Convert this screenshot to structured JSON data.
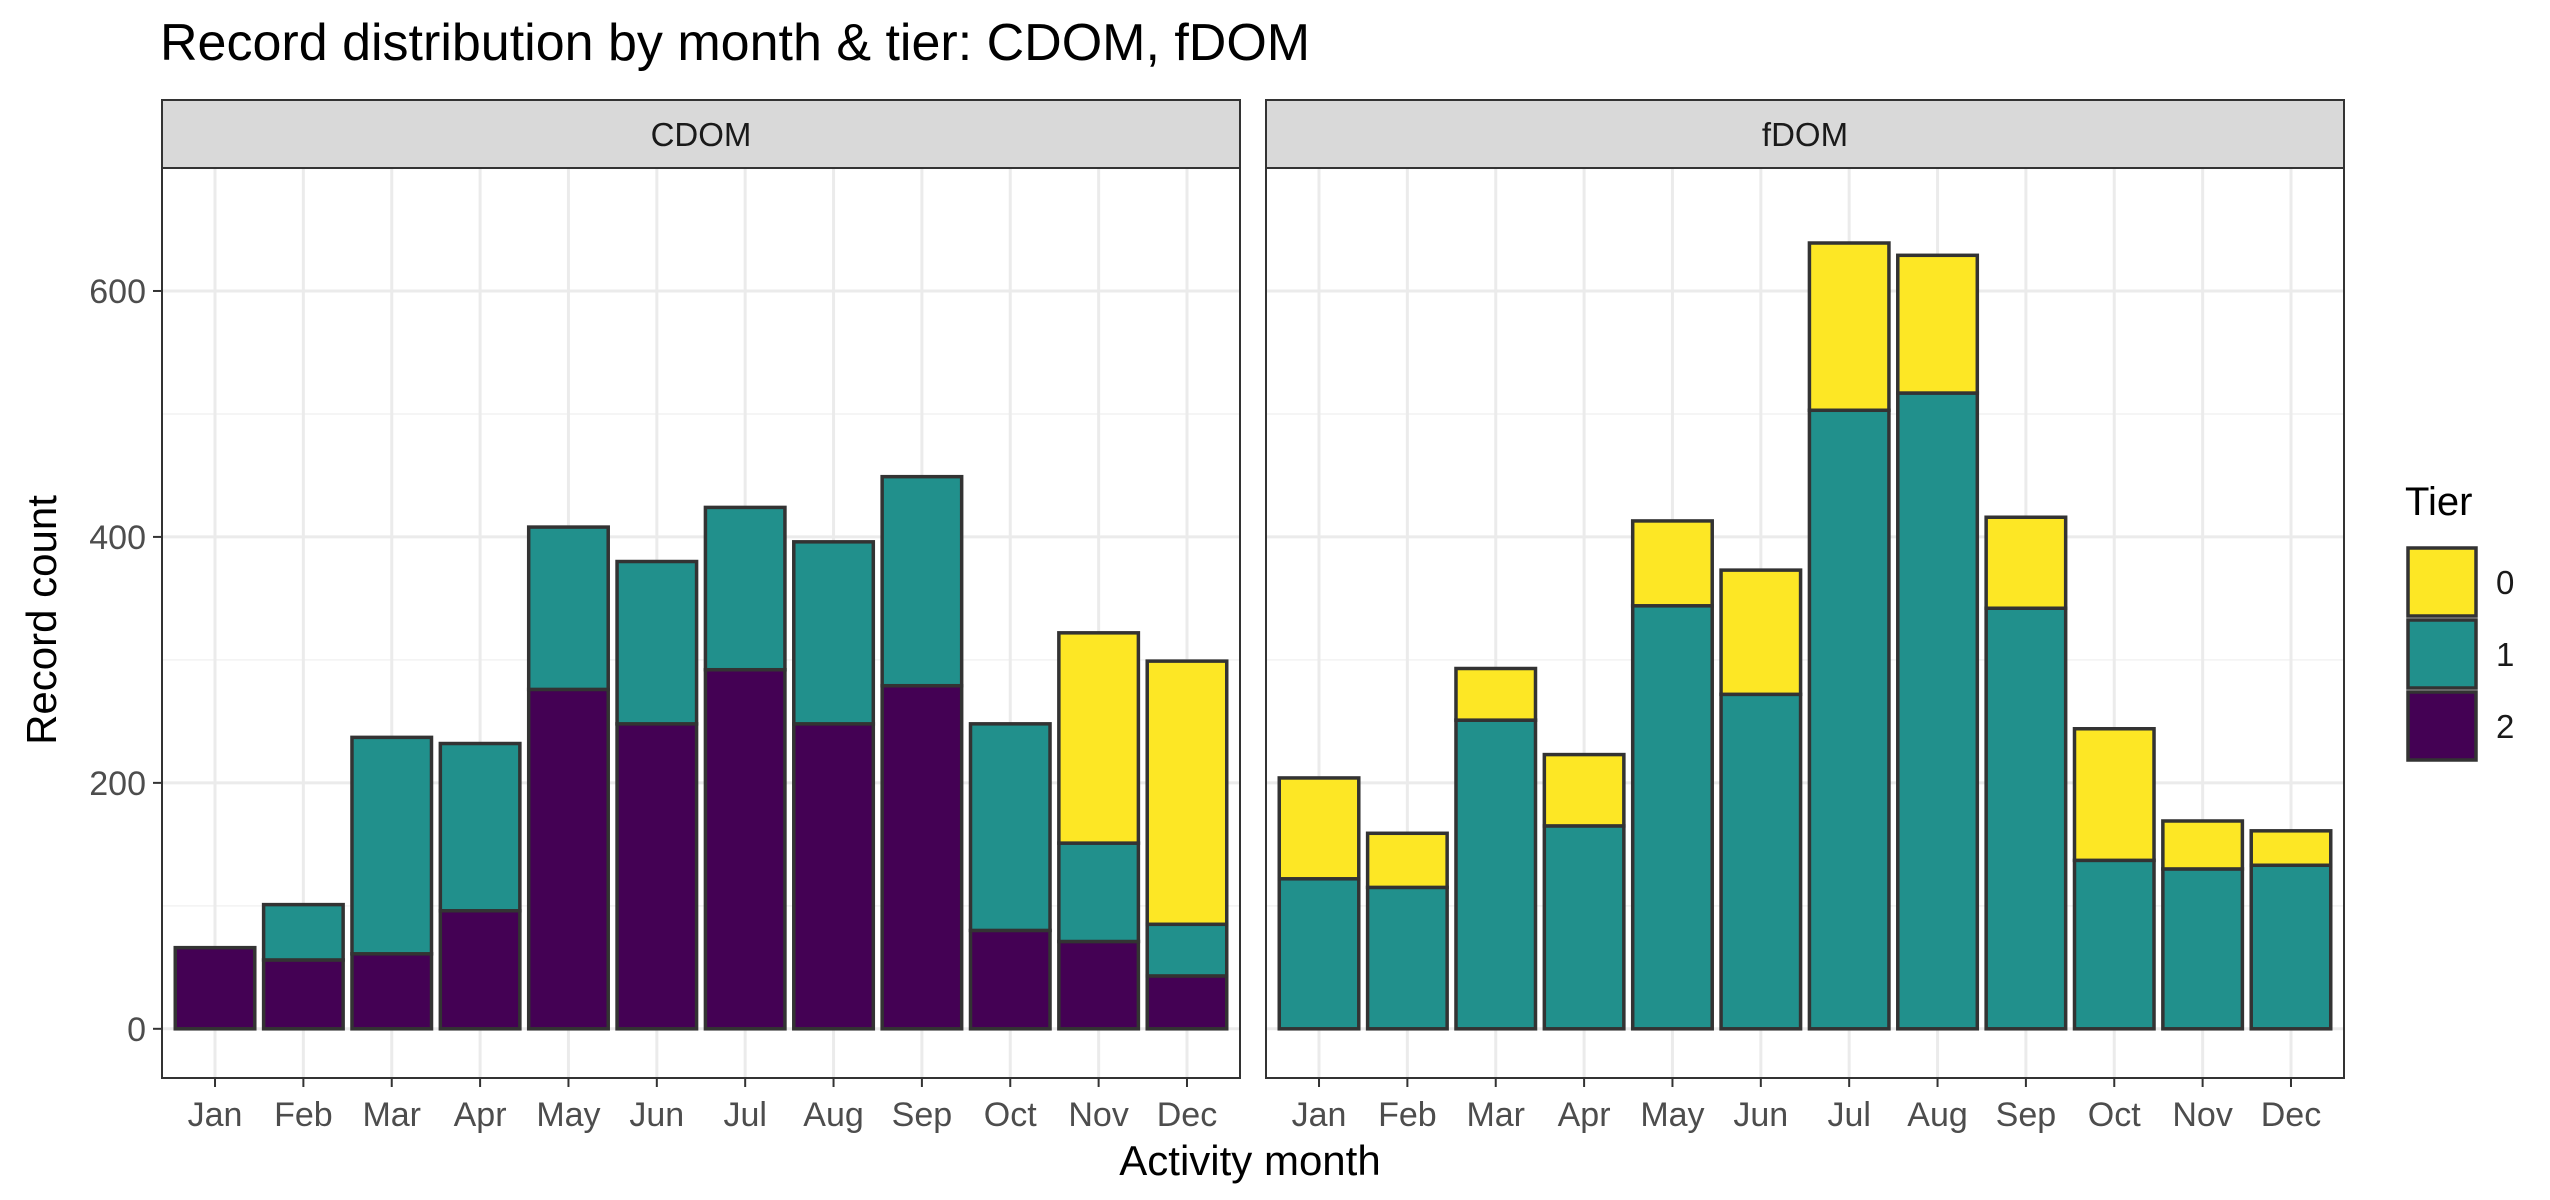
{
  "chart_data": {
    "type": "bar",
    "stacked": true,
    "title": "Record distribution by month & tier: CDOM, fDOM",
    "xlabel": "Activity month",
    "ylabel": "Record count",
    "ylim": [
      -40,
      700
    ],
    "yticks": [
      0,
      200,
      400,
      600
    ],
    "grid": true,
    "legend": {
      "title": "Tier",
      "placement": "right",
      "entries": [
        {
          "label": "0",
          "color": "#FDE725"
        },
        {
          "label": "1",
          "color": "#21908C"
        },
        {
          "label": "2",
          "color": "#440154"
        }
      ]
    },
    "categories": [
      "Jan",
      "Feb",
      "Mar",
      "Apr",
      "May",
      "Jun",
      "Jul",
      "Aug",
      "Sep",
      "Oct",
      "Nov",
      "Dec"
    ],
    "panels": [
      {
        "name": "CDOM",
        "series": [
          {
            "tier": "2",
            "values": [
              66,
              56,
              61,
              96,
              276,
              248,
              292,
              248,
              279,
              80,
              71,
              43
            ]
          },
          {
            "tier": "1",
            "values": [
              0,
              45,
              176,
              136,
              132,
              132,
              132,
              148,
              170,
              168,
              80,
              42
            ]
          },
          {
            "tier": "0",
            "values": [
              0,
              0,
              0,
              0,
              0,
              0,
              0,
              0,
              0,
              0,
              171,
              214
            ]
          }
        ]
      },
      {
        "name": "fDOM",
        "series": [
          {
            "tier": "2",
            "values": [
              0,
              0,
              0,
              0,
              0,
              0,
              0,
              0,
              0,
              0,
              0,
              0
            ]
          },
          {
            "tier": "1",
            "values": [
              122,
              115,
              251,
              165,
              344,
              272,
              503,
              517,
              342,
              137,
              130,
              133
            ]
          },
          {
            "tier": "0",
            "values": [
              82,
              44,
              42,
              58,
              69,
              101,
              136,
              112,
              74,
              107,
              39,
              28
            ]
          }
        ]
      }
    ]
  }
}
